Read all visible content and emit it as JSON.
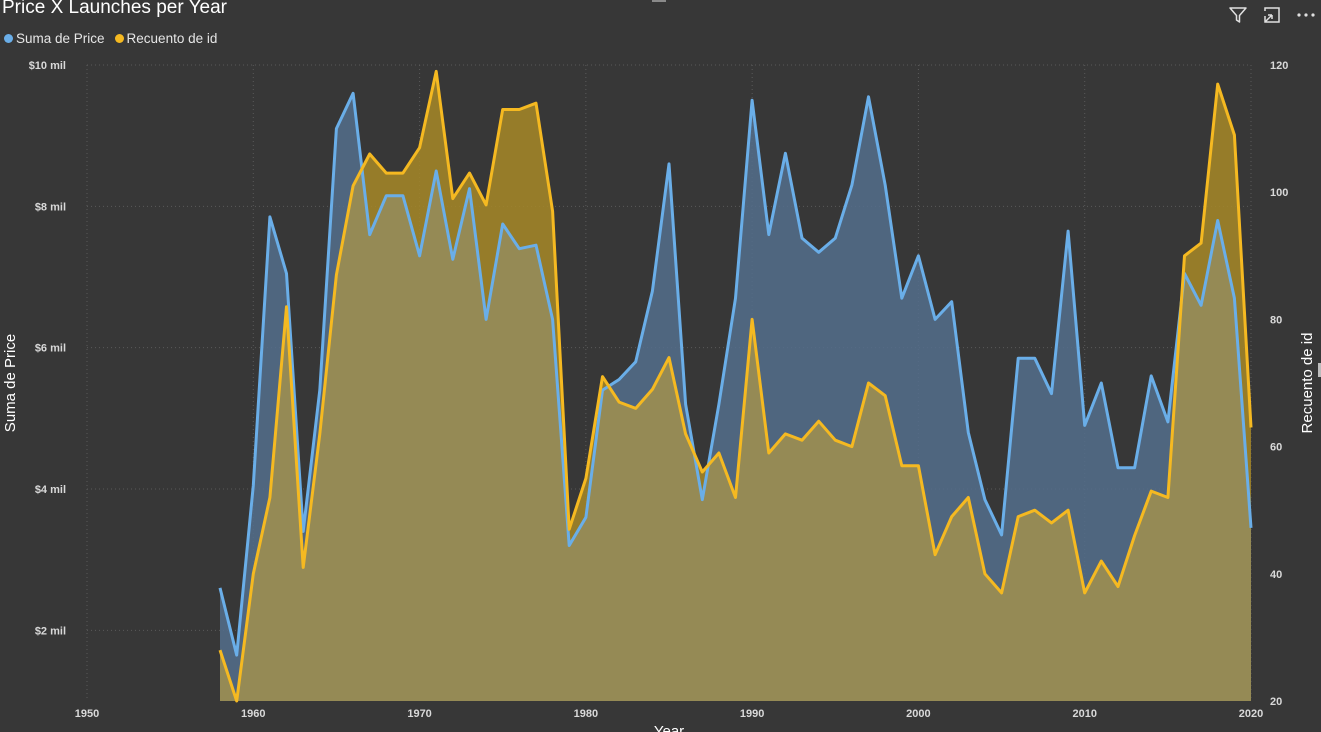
{
  "visual": {
    "title": "Price X Launches per Year",
    "toolbar": {
      "filter_icon": "filter-icon",
      "focus_icon": "focus-mode-icon",
      "more_icon": "more-options-icon"
    }
  },
  "chart_data": {
    "type": "area",
    "title": "Price X Launches per Year",
    "xlabel": "Year",
    "ylabel": "Suma de Price",
    "y2label": "Recuento de id",
    "xlim": [
      1950,
      2020
    ],
    "xticks": [
      1950,
      1960,
      1970,
      1980,
      1990,
      2000,
      2010,
      2020
    ],
    "xtick_labels": [
      "1950",
      "1960",
      "1970",
      "1980",
      "1990",
      "2000",
      "2010",
      "2020"
    ],
    "ylim": [
      1000,
      10000
    ],
    "yticks": [
      2000,
      4000,
      6000,
      8000,
      10000
    ],
    "ytick_labels": [
      "$2 mil",
      "$4 mil",
      "$6 mil",
      "$8 mil",
      "$10 mil"
    ],
    "y2lim": [
      20,
      120
    ],
    "y2ticks": [
      20,
      40,
      60,
      80,
      100,
      120
    ],
    "y2tick_labels": [
      "20",
      "40",
      "60",
      "80",
      "100",
      "120"
    ],
    "grid": true,
    "legend_position": "top-left",
    "x": [
      1958,
      1959,
      1960,
      1961,
      1962,
      1963,
      1964,
      1965,
      1966,
      1967,
      1968,
      1969,
      1970,
      1971,
      1972,
      1973,
      1974,
      1975,
      1976,
      1977,
      1978,
      1979,
      1980,
      1981,
      1982,
      1983,
      1984,
      1985,
      1986,
      1987,
      1988,
      1989,
      1990,
      1991,
      1992,
      1993,
      1994,
      1995,
      1996,
      1997,
      1998,
      1999,
      2000,
      2001,
      2002,
      2003,
      2004,
      2005,
      2006,
      2007,
      2008,
      2009,
      2010,
      2011,
      2012,
      2013,
      2014,
      2015,
      2016,
      2017,
      2018,
      2019,
      2020
    ],
    "series": [
      {
        "name": "Suma de Price",
        "axis": "left",
        "color": "#6aaee8",
        "fill": "#546f8c",
        "values": [
          2600,
          1650,
          4050,
          7850,
          7050,
          3400,
          5400,
          9100,
          9600,
          7600,
          8150,
          8150,
          7300,
          8500,
          7250,
          8250,
          6400,
          7750,
          7400,
          7450,
          6400,
          3200,
          3600,
          5400,
          5550,
          5800,
          6800,
          8600,
          5200,
          3850,
          5200,
          6700,
          9500,
          7600,
          8750,
          7550,
          7350,
          7550,
          8300,
          9550,
          8300,
          6700,
          7300,
          6400,
          6650,
          4800,
          3850,
          3350,
          5850,
          5850,
          5350,
          7650,
          4900,
          5500,
          4300,
          4300,
          5600,
          4950,
          7050,
          6600,
          7800,
          6700,
          3450
        ]
      },
      {
        "name": "Recuento de id",
        "axis": "right",
        "color": "#f5b921",
        "fill": "#a78827",
        "values": [
          28,
          20,
          40,
          52,
          82,
          41,
          62,
          87,
          101,
          106,
          103,
          103,
          107,
          119,
          99,
          103,
          98,
          113,
          113,
          114,
          97,
          47,
          55,
          71,
          67,
          66,
          69,
          74,
          62,
          56,
          59,
          52,
          80,
          59,
          62,
          61,
          64,
          61,
          60,
          70,
          68,
          57,
          57,
          43,
          49,
          52,
          40,
          37,
          49,
          50,
          48,
          50,
          37,
          42,
          38,
          46,
          53,
          52,
          90,
          92,
          117,
          109,
          63
        ]
      }
    ]
  }
}
